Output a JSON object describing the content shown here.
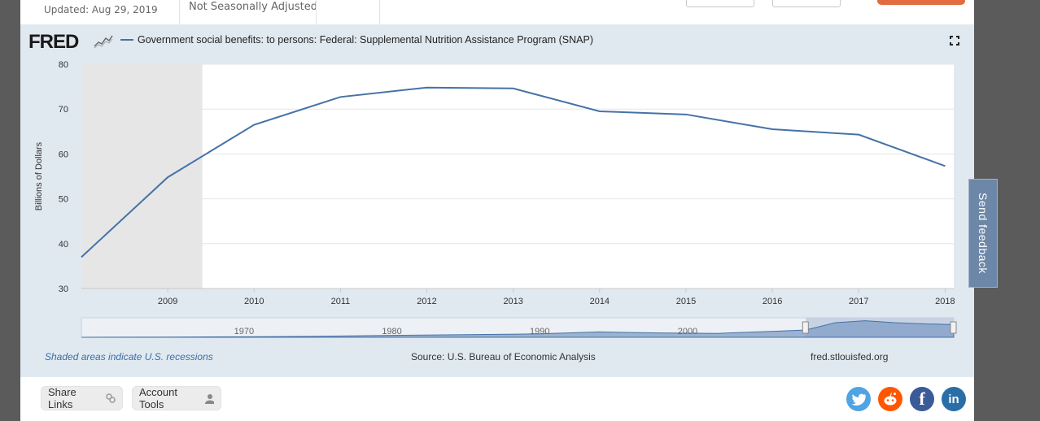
{
  "header": {
    "updated": "Updated: Aug 29, 2019",
    "adjustment": "Not Seasonally Adjusted"
  },
  "graph": {
    "logo": "FRED",
    "legend_label": "Government social benefits: to persons: Federal: Supplemental Nutrition Assistance Program (SNAP)",
    "footer_note": "Shaded areas indicate U.S. recessions",
    "source": "Source: U.S. Bureau of Economic Analysis",
    "site": "fred.stlouisfed.org"
  },
  "chart_data": {
    "type": "line",
    "title": "Government social benefits: to persons: Federal: Supplemental Nutrition Assistance Program (SNAP)",
    "xlabel": "",
    "ylabel": "Billions of Dollars",
    "xlim": [
      2008.0,
      2018.1
    ],
    "ylim": [
      30,
      80
    ],
    "yticks": [
      30,
      40,
      50,
      60,
      70,
      80
    ],
    "xticks": [
      2009,
      2010,
      2011,
      2012,
      2013,
      2014,
      2015,
      2016,
      2017,
      2018
    ],
    "series": [
      {
        "name": "SNAP",
        "color": "#4572a7",
        "x": [
          2008,
          2009,
          2010,
          2011,
          2012,
          2013,
          2014,
          2015,
          2016,
          2017,
          2018
        ],
        "values": [
          37.0,
          54.8,
          66.5,
          72.7,
          74.8,
          74.6,
          69.5,
          68.8,
          65.5,
          64.3,
          57.3
        ]
      }
    ],
    "recession_shading": [
      [
        2008.0,
        2009.4
      ]
    ],
    "navigator": {
      "labels": [
        "1970",
        "1980",
        "1990",
        "2000"
      ],
      "range": [
        1959,
        2018
      ],
      "selected": [
        2008,
        2018
      ]
    }
  },
  "toolbar": {
    "share_label": "Share Links",
    "account_label": "Account Tools",
    "feedback_label": "Send feedback"
  },
  "colors": {
    "series": "#4572a7",
    "panel": "#e1e9f0",
    "recession": "#e6e6e6",
    "accent": "#e26b3f"
  }
}
